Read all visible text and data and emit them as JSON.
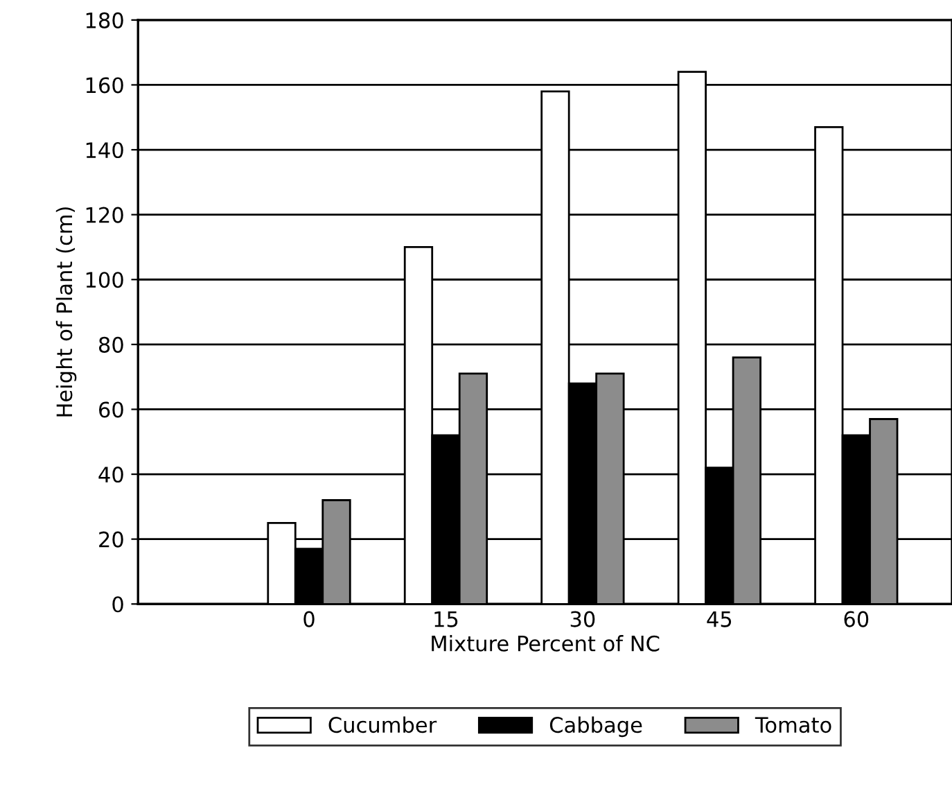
{
  "chart_data": {
    "type": "bar",
    "xlabel": "Mixture Percent of NC",
    "ylabel": "Height of Plant (cm)",
    "categories": [
      "0",
      "15",
      "30",
      "45",
      "60"
    ],
    "series": [
      {
        "name": "Cucumber",
        "color": "#ffffff",
        "values": [
          25,
          110,
          158,
          164,
          147
        ]
      },
      {
        "name": "Cabbage",
        "color": "#000000",
        "values": [
          17,
          52,
          68,
          42,
          52
        ]
      },
      {
        "name": "Tomato",
        "color": "#8c8c8c",
        "values": [
          32,
          71,
          71,
          76,
          57
        ]
      }
    ],
    "ylim": [
      0,
      180
    ],
    "yticks": [
      0,
      20,
      40,
      60,
      80,
      100,
      120,
      140,
      160,
      180
    ],
    "grid": "y",
    "legend": "bottom"
  }
}
